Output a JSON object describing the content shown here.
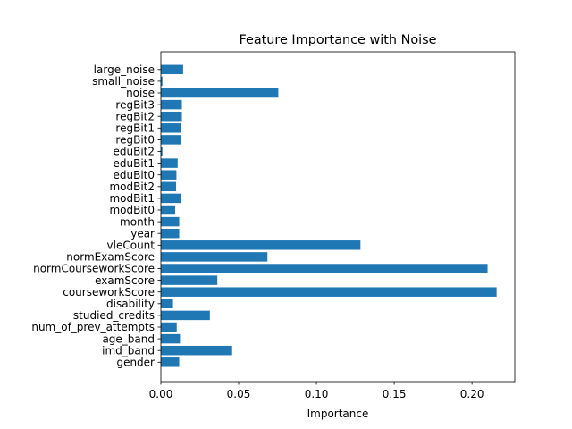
{
  "chart_data": {
    "type": "bar",
    "orientation": "horizontal",
    "title": "Feature Importance with Noise",
    "xlabel": "Importance",
    "ylabel": "",
    "xlim": [
      0,
      0.2275
    ],
    "xticks": [
      0.0,
      0.05,
      0.1,
      0.15,
      0.2
    ],
    "xtick_labels": [
      "0.00",
      "0.05",
      "0.10",
      "0.15",
      "0.20"
    ],
    "grid": false,
    "bar_color": "#1f77b4",
    "categories": [
      "gender",
      "imd_band",
      "age_band",
      "num_of_prev_attempts",
      "studied_credits",
      "disability",
      "courseworkScore",
      "examScore",
      "normCourseworkScore",
      "normExamScore",
      "vleCount",
      "year",
      "month",
      "modBit0",
      "modBit1",
      "modBit2",
      "eduBit0",
      "eduBit1",
      "eduBit2",
      "regBit0",
      "regBit1",
      "regBit2",
      "regBit3",
      "noise",
      "small_noise",
      "large_noise"
    ],
    "values": [
      0.0118,
      0.0458,
      0.0123,
      0.0102,
      0.0315,
      0.0078,
      0.2158,
      0.0363,
      0.21,
      0.0685,
      0.1283,
      0.0118,
      0.0118,
      0.0092,
      0.0128,
      0.0098,
      0.01,
      0.0108,
      0.001,
      0.013,
      0.013,
      0.0135,
      0.0135,
      0.0755,
      0.001,
      0.0143
    ]
  }
}
